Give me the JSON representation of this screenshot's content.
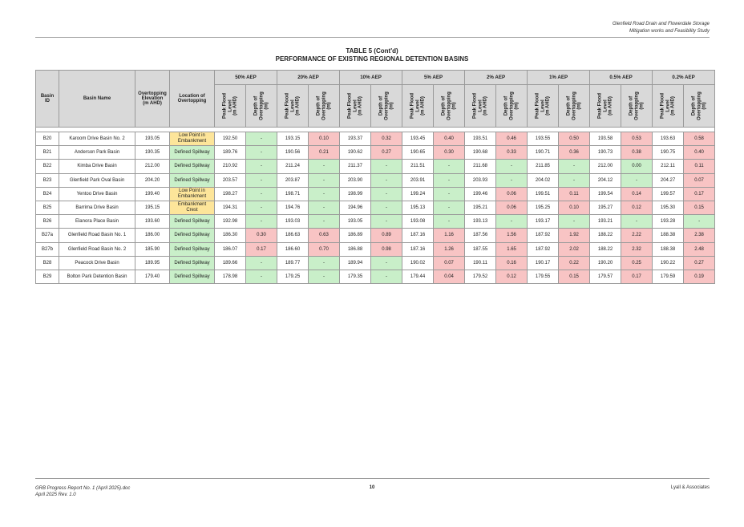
{
  "header": {
    "line1": "Glenfield Road Drain and Flowerdale Storage",
    "line2": "Mitigation works and Feasibility Study"
  },
  "title": {
    "line1": "TABLE 5 (Cont'd)",
    "line2": "PERFORMANCE OF EXISTING REGIONAL DETENTION BASINS"
  },
  "table": {
    "col_basin_id": "Basin\nID",
    "col_basin_name": "Basin Name",
    "col_elev": "Overtopping\nElevation\n(m AHD)",
    "col_location": "Location of\nOvertopping",
    "sub_peak": "Peak Flood\nLevel\n(m AHD)",
    "sub_depth": "Depth of\nOvertopping\n(m)",
    "aep_groups": [
      "50% AEP",
      "20% AEP",
      "10% AEP",
      "5% AEP",
      "2% AEP",
      "1% AEP",
      "0.5% AEP",
      "0.2% AEP"
    ],
    "rows": [
      {
        "id": "B20",
        "name": "Karoom Drive Basin No. 2",
        "elev": "193.05",
        "loc": "Low Point in\nEmbankment",
        "loc_warn": true,
        "vals": [
          [
            "192.50",
            "-"
          ],
          [
            "193.15",
            "0.10"
          ],
          [
            "193.37",
            "0.32"
          ],
          [
            "193.45",
            "0.40"
          ],
          [
            "193.51",
            "0.46"
          ],
          [
            "193.55",
            "0.50"
          ],
          [
            "193.58",
            "0.53"
          ],
          [
            "193.63",
            "0.58"
          ]
        ]
      },
      {
        "id": "B21",
        "name": "Anderson Park Basin",
        "elev": "190.35",
        "loc": "Defined Spillway",
        "loc_warn": false,
        "vals": [
          [
            "189.76",
            "-"
          ],
          [
            "190.56",
            "0.21"
          ],
          [
            "190.62",
            "0.27"
          ],
          [
            "190.65",
            "0.30"
          ],
          [
            "190.68",
            "0.33"
          ],
          [
            "190.71",
            "0.36"
          ],
          [
            "190.73",
            "0.38"
          ],
          [
            "190.75",
            "0.40"
          ]
        ]
      },
      {
        "id": "B22",
        "name": "Kimba Drive Basin",
        "elev": "212.00",
        "loc": "Defined Spillway",
        "loc_warn": false,
        "vals": [
          [
            "210.92",
            "-"
          ],
          [
            "211.24",
            "-"
          ],
          [
            "211.37",
            "-"
          ],
          [
            "211.51",
            "-"
          ],
          [
            "211.68",
            "-"
          ],
          [
            "211.85",
            "-"
          ],
          [
            "212.00",
            "0.00"
          ],
          [
            "212.11",
            "0.11"
          ]
        ]
      },
      {
        "id": "B23",
        "name": "Glenfield Park Oval Basin",
        "elev": "204.20",
        "loc": "Defined Spillway",
        "loc_warn": false,
        "vals": [
          [
            "203.57",
            "-"
          ],
          [
            "203.87",
            "-"
          ],
          [
            "203.90",
            "-"
          ],
          [
            "203.91",
            "-"
          ],
          [
            "203.93",
            "-"
          ],
          [
            "204.02",
            "-"
          ],
          [
            "204.12",
            "-"
          ],
          [
            "204.27",
            "0.07"
          ]
        ]
      },
      {
        "id": "B24",
        "name": "Yentoo Drive Basin",
        "elev": "199.40",
        "loc": "Low Point in\nEmbankment",
        "loc_warn": true,
        "vals": [
          [
            "198.27",
            "-"
          ],
          [
            "198.71",
            "-"
          ],
          [
            "198.99",
            "-"
          ],
          [
            "199.24",
            "-"
          ],
          [
            "199.46",
            "0.06"
          ],
          [
            "199.51",
            "0.11"
          ],
          [
            "199.54",
            "0.14"
          ],
          [
            "199.57",
            "0.17"
          ]
        ]
      },
      {
        "id": "B25",
        "name": "Barrima Drive Basin",
        "elev": "195.15",
        "loc": "Embankment\nCrest",
        "loc_warn": true,
        "vals": [
          [
            "194.31",
            "-"
          ],
          [
            "194.76",
            "-"
          ],
          [
            "194.96",
            "-"
          ],
          [
            "195.13",
            "-"
          ],
          [
            "195.21",
            "0.06"
          ],
          [
            "195.25",
            "0.10"
          ],
          [
            "195.27",
            "0.12"
          ],
          [
            "195.30",
            "0.15"
          ]
        ]
      },
      {
        "id": "B26",
        "name": "Elanora Place Basin",
        "elev": "193.60",
        "loc": "Defined Spillway",
        "loc_warn": false,
        "vals": [
          [
            "192.98",
            "-"
          ],
          [
            "193.03",
            "-"
          ],
          [
            "193.05",
            "-"
          ],
          [
            "193.08",
            "-"
          ],
          [
            "193.13",
            "-"
          ],
          [
            "193.17",
            "-"
          ],
          [
            "193.21",
            "-"
          ],
          [
            "193.28",
            "-"
          ]
        ]
      },
      {
        "id": "B27a",
        "name": "Glenfield Road Basin No. 1",
        "elev": "186.00",
        "loc": "Defined Spillway",
        "loc_warn": false,
        "vals": [
          [
            "186.30",
            "0.30"
          ],
          [
            "186.63",
            "0.63"
          ],
          [
            "186.89",
            "0.89"
          ],
          [
            "187.16",
            "1.16"
          ],
          [
            "187.56",
            "1.56"
          ],
          [
            "187.92",
            "1.92"
          ],
          [
            "188.22",
            "2.22"
          ],
          [
            "188.38",
            "2.38"
          ]
        ]
      },
      {
        "id": "B27b",
        "name": "Glenfield Road Basin No. 2",
        "elev": "185.90",
        "loc": "Defined Spillway",
        "loc_warn": false,
        "vals": [
          [
            "186.07",
            "0.17"
          ],
          [
            "186.60",
            "0.70"
          ],
          [
            "186.88",
            "0.98"
          ],
          [
            "187.16",
            "1.26"
          ],
          [
            "187.55",
            "1.65"
          ],
          [
            "187.92",
            "2.02"
          ],
          [
            "188.22",
            "2.32"
          ],
          [
            "188.38",
            "2.48"
          ]
        ]
      },
      {
        "id": "B28",
        "name": "Peacock Drive Basin",
        "elev": "189.95",
        "loc": "Defined Spillway",
        "loc_warn": false,
        "vals": [
          [
            "189.66",
            "-"
          ],
          [
            "189.77",
            "-"
          ],
          [
            "189.94",
            "-"
          ],
          [
            "190.02",
            "0.07"
          ],
          [
            "190.11",
            "0.16"
          ],
          [
            "190.17",
            "0.22"
          ],
          [
            "190.20",
            "0.25"
          ],
          [
            "190.22",
            "0.27"
          ]
        ]
      },
      {
        "id": "B29",
        "name": "Bolton Park Detention Basin",
        "elev": "179.40",
        "loc": "Defined Spillway",
        "loc_warn": false,
        "vals": [
          [
            "178.98",
            "-"
          ],
          [
            "179.25",
            "-"
          ],
          [
            "179.35",
            "-"
          ],
          [
            "179.44",
            "0.04"
          ],
          [
            "179.52",
            "0.12"
          ],
          [
            "179.55",
            "0.15"
          ],
          [
            "179.57",
            "0.17"
          ],
          [
            "179.59",
            "0.19"
          ]
        ]
      }
    ]
  },
  "footer": {
    "left1": "GRB Progress Report No. 1 (April 2025).doc",
    "left2": "April 2025  Rev. 1.0",
    "page": "10",
    "right": "Lyall & Associates"
  },
  "colors": {
    "green": "#c9efc9",
    "red": "#f8c4c4",
    "yellow": "#fde59a",
    "header_grey": "#d9d9d9"
  }
}
